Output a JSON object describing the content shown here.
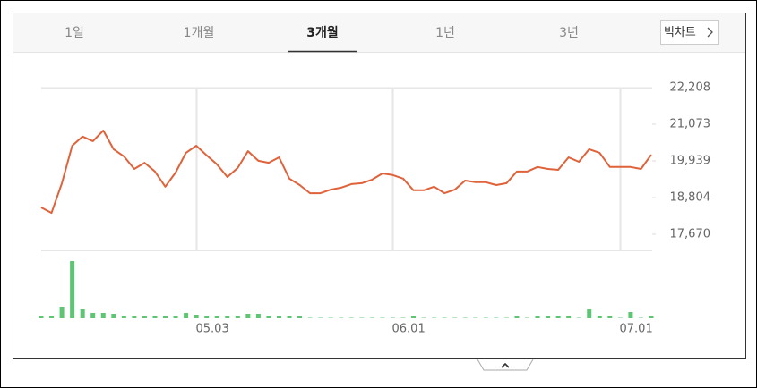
{
  "tabs": [
    {
      "label": "1일",
      "selected": false
    },
    {
      "label": "1개월",
      "selected": false
    },
    {
      "label": "3개월",
      "selected": true
    },
    {
      "label": "1년",
      "selected": false
    },
    {
      "label": "3년",
      "selected": false
    }
  ],
  "button": {
    "label": "빅차트"
  },
  "chart_data": {
    "type": "line",
    "color": "#e0623a",
    "volume_color": "#5cc672",
    "categories": [
      null,
      null,
      null,
      null,
      null,
      null,
      null,
      null,
      null,
      null,
      null,
      null,
      null,
      null,
      null,
      "05.03",
      null,
      null,
      null,
      null,
      null,
      null,
      null,
      null,
      null,
      null,
      null,
      null,
      null,
      null,
      null,
      null,
      null,
      null,
      "06.01",
      null,
      null,
      null,
      null,
      null,
      null,
      null,
      null,
      null,
      null,
      null,
      null,
      null,
      null,
      null,
      null,
      null,
      null,
      null,
      null,
      null,
      "07.01",
      null,
      null,
      null
    ],
    "values": [
      18500,
      18330,
      19250,
      20410,
      20690,
      20550,
      20880,
      20300,
      20080,
      19690,
      19880,
      19610,
      19140,
      19580,
      20190,
      20410,
      20110,
      19830,
      19440,
      19720,
      20240,
      19940,
      19880,
      20050,
      19390,
      19190,
      18940,
      18940,
      19050,
      19110,
      19220,
      19250,
      19360,
      19550,
      19500,
      19390,
      19030,
      19030,
      19140,
      18940,
      19050,
      19330,
      19280,
      19280,
      19190,
      19250,
      19610,
      19610,
      19750,
      19690,
      19660,
      20050,
      19910,
      20300,
      20190,
      19750,
      19750,
      19750,
      19690,
      20130
    ],
    "volume": [
      3,
      3,
      13,
      64,
      10,
      6,
      6,
      5,
      3,
      3,
      2,
      2,
      2,
      2,
      6,
      4,
      2,
      2,
      2,
      2,
      5,
      5,
      3,
      2,
      2,
      2,
      1,
      1,
      1,
      1,
      1,
      1,
      1,
      1,
      1,
      1,
      3,
      1,
      1,
      1,
      1,
      1,
      1,
      1,
      1,
      1,
      2,
      1,
      2,
      2,
      2,
      3,
      1,
      10,
      3,
      3,
      1,
      7,
      1,
      3
    ],
    "ylim": [
      17170,
      22208
    ],
    "yticks": [
      {
        "value": 22208,
        "label": "22,208"
      },
      {
        "value": 21073,
        "label": "21,073"
      },
      {
        "value": 19939,
        "label": "19,939"
      },
      {
        "value": 18804,
        "label": "18,804"
      },
      {
        "value": 17670,
        "label": "17,670"
      }
    ],
    "grid": true
  }
}
